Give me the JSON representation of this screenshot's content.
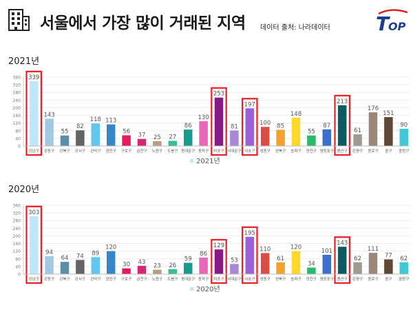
{
  "header": {
    "title": "서울에서 가장 많이 거래된 지역",
    "source": "데이터 출처: 나라데이터",
    "logo_text": "TOP",
    "icon": "building-icon"
  },
  "colors": {
    "highlight": "#ee1c24",
    "axis": "#999999",
    "label": "#555555"
  },
  "chart_data": [
    {
      "type": "bar",
      "heading": "2021년",
      "legend": "2021년",
      "ylim": [
        0,
        360
      ],
      "yticks": [
        0,
        40,
        80,
        120,
        160,
        200,
        240,
        280,
        320,
        360
      ],
      "grid": true,
      "categories": [
        "강남구",
        "강동구",
        "강북구",
        "강서구",
        "관악구",
        "광진구",
        "구로구",
        "금천구",
        "노원구",
        "도봉구",
        "동대문구",
        "동작구",
        "마포구",
        "서대문구",
        "서초구",
        "성동구",
        "성북구",
        "송파구",
        "양천구",
        "영등포구",
        "용산구",
        "은평구",
        "종로구",
        "중구",
        "중랑구"
      ],
      "values": [
        339,
        143,
        55,
        82,
        118,
        113,
        56,
        37,
        25,
        27,
        86,
        130,
        253,
        81,
        197,
        100,
        85,
        148,
        55,
        87,
        213,
        61,
        176,
        151,
        90
      ],
      "colors": [
        "#bfe6fa",
        "#a2c9e4",
        "#5b8fa8",
        "#636363",
        "#62c6f1",
        "#3886c4",
        "#e8195c",
        "#d72774",
        "#b79f7e",
        "#37c08d",
        "#189a8c",
        "#ea66b7",
        "#8a1988",
        "#a987d5",
        "#9a62d6",
        "#dd4b45",
        "#f3a32c",
        "#ffd82a",
        "#2bba6c",
        "#3b6fcf",
        "#0b5c62",
        "#a09a92",
        "#9a8779",
        "#5f4835",
        "#3fc9d6"
      ],
      "highlighted": [
        "강남구",
        "마포구",
        "서초구",
        "용산구"
      ]
    },
    {
      "type": "bar",
      "heading": "2020년",
      "legend": "2020년",
      "ylim": [
        0,
        360
      ],
      "yticks": [
        0,
        40,
        80,
        120,
        160,
        200,
        240,
        280,
        320,
        360
      ],
      "grid": true,
      "categories": [
        "강남구",
        "강동구",
        "강북구",
        "강서구",
        "관악구",
        "광진구",
        "구로구",
        "금천구",
        "노원구",
        "도봉구",
        "동대문구",
        "동작구",
        "마포구",
        "서대문구",
        "서초구",
        "성동구",
        "성북구",
        "송파구",
        "양천구",
        "영등포구",
        "용산구",
        "은평구",
        "종로구",
        "중구",
        "중랑구"
      ],
      "values": [
        303,
        94,
        64,
        74,
        89,
        120,
        30,
        43,
        23,
        26,
        59,
        86,
        129,
        53,
        195,
        110,
        61,
        120,
        34,
        101,
        143,
        62,
        111,
        77,
        62
      ],
      "colors": [
        "#bfe6fa",
        "#a2c9e4",
        "#5b8fa8",
        "#636363",
        "#62c6f1",
        "#3886c4",
        "#e8195c",
        "#d72774",
        "#b79f7e",
        "#37c08d",
        "#189a8c",
        "#ea66b7",
        "#8a1988",
        "#a987d5",
        "#9a62d6",
        "#dd4b45",
        "#f3a32c",
        "#ffd82a",
        "#2bba6c",
        "#3b6fcf",
        "#0b5c62",
        "#a09a92",
        "#9a8779",
        "#5f4835",
        "#3fc9d6"
      ],
      "highlighted": [
        "강남구",
        "마포구",
        "서초구",
        "용산구"
      ]
    }
  ]
}
